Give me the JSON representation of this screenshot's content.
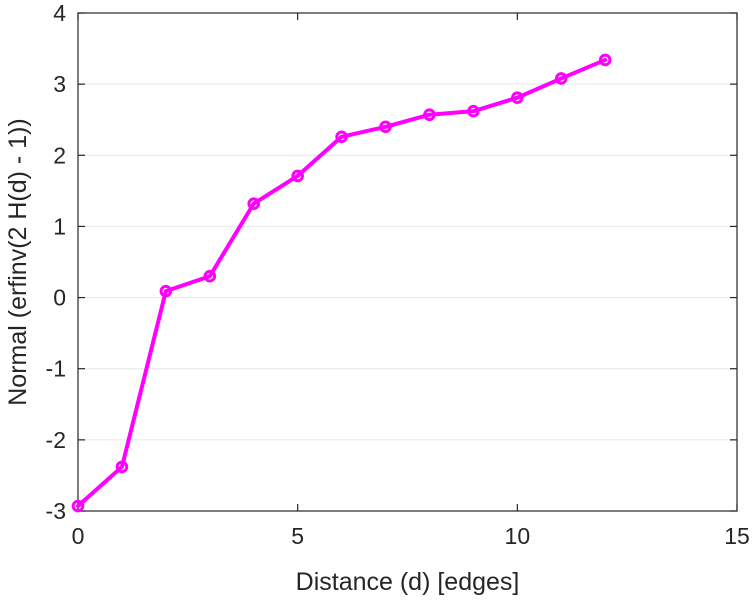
{
  "chart_data": {
    "type": "line",
    "title": "",
    "xlabel": "Distance (d) [edges]",
    "ylabel": "Normal (erfinv(2 H(d) - 1))",
    "xlim": [
      0,
      15
    ],
    "ylim": [
      -3,
      4
    ],
    "x_ticks": [
      0,
      5,
      10,
      15
    ],
    "y_ticks": [
      -3,
      -2,
      -1,
      0,
      1,
      2,
      3,
      4
    ],
    "grid": "horizontal",
    "legend": "none",
    "series": [
      {
        "color": "#ff00ff",
        "x": [
          0,
          1,
          2,
          3,
          4,
          5,
          6,
          7,
          8,
          9,
          10,
          11,
          12
        ],
        "y": [
          -2.93,
          -2.38,
          0.09,
          0.3,
          1.32,
          1.71,
          2.26,
          2.4,
          2.57,
          2.62,
          2.81,
          3.08,
          3.34
        ]
      }
    ],
    "axis_color": "#262626",
    "grid_color": "#e6e6e6"
  }
}
